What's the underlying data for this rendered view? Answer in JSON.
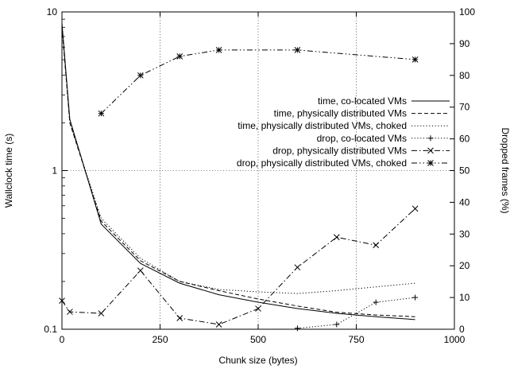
{
  "chart_data": {
    "type": "line",
    "xlabel": "Chunk size (bytes)",
    "ylabel": "Wallclock time (s)",
    "y2label": "Dropped frames (%)",
    "xlim": [
      0,
      1000
    ],
    "ylim": [
      0.1,
      10
    ],
    "y_scale": "log",
    "y2lim": [
      0,
      100
    ],
    "grid": true,
    "legend_position": "top-right",
    "x_ticks": [
      "0",
      "250",
      "500",
      "750",
      "1000"
    ],
    "y_ticks": [
      "0.1",
      "1",
      "10"
    ],
    "y2_ticks": [
      "0",
      "10",
      "20",
      "30",
      "40",
      "50",
      "60",
      "70",
      "80",
      "90",
      "100"
    ],
    "series": [
      {
        "name": "time, co-located VMs",
        "axis": "left",
        "style": "solid",
        "marker": "none",
        "x": [
          0,
          20,
          100,
          200,
          300,
          400,
          500,
          600,
          700,
          800,
          900
        ],
        "y": [
          8.5,
          2.1,
          0.46,
          0.26,
          0.195,
          0.165,
          0.148,
          0.135,
          0.126,
          0.12,
          0.115
        ]
      },
      {
        "name": "time, physically distributed VMs",
        "axis": "left",
        "style": "dashed",
        "marker": "none",
        "x": [
          0,
          20,
          100,
          200,
          300,
          400,
          500,
          600,
          700,
          800,
          900
        ],
        "y": [
          8.0,
          2.0,
          0.48,
          0.27,
          0.2,
          0.175,
          0.155,
          0.14,
          0.128,
          0.123,
          0.12
        ]
      },
      {
        "name": "time, physically distributed VMs, choked",
        "axis": "left",
        "style": "dotted",
        "marker": "none",
        "x": [
          0,
          20,
          100,
          200,
          300,
          400,
          500,
          600,
          700,
          800,
          900
        ],
        "y": [
          8.2,
          2.0,
          0.5,
          0.28,
          0.2,
          0.178,
          0.172,
          0.168,
          0.175,
          0.185,
          0.195
        ]
      },
      {
        "name": "drop, co-located VMs",
        "axis": "right",
        "style": "dotted",
        "marker": "plus",
        "x": [
          600,
          700,
          800,
          900
        ],
        "y": [
          0.3,
          1.5,
          8.5,
          10
        ]
      },
      {
        "name": "drop, physically distributed VMs",
        "axis": "right",
        "style": "dashdot",
        "marker": "x",
        "x": [
          0,
          20,
          100,
          200,
          300,
          400,
          500,
          600,
          700,
          800,
          900
        ],
        "y": [
          9,
          5.5,
          5,
          18.5,
          3.5,
          1.5,
          6.5,
          19.5,
          29,
          26.5,
          38
        ]
      },
      {
        "name": "drop, physically distributed VMs, choked",
        "axis": "right",
        "style": "dashdotdot",
        "marker": "star",
        "x": [
          100,
          200,
          300,
          400,
          600,
          900
        ],
        "y": [
          68,
          80,
          86,
          88,
          88,
          85
        ]
      }
    ]
  }
}
